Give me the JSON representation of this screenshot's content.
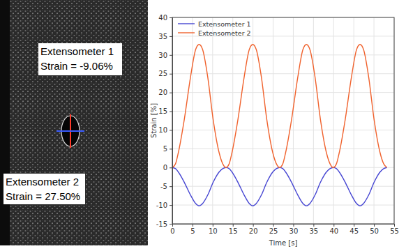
{
  "chart_data": {
    "type": "line",
    "x_label": "Time [s]",
    "y_label": "Strain [%]",
    "x": [
      0,
      0.8,
      1.5,
      3,
      4.5,
      5.8,
      6.65,
      7.5,
      8.8,
      10.1,
      11.6,
      12.5,
      13.3,
      14.1,
      14.8,
      16.3,
      17.8,
      19.1,
      19.95,
      20.8,
      22.1,
      23.4,
      24.9,
      25.8,
      26.6,
      27.4,
      28.1,
      29.6,
      31.1,
      32.4,
      33.25,
      34.1,
      35.4,
      36.7,
      38.2,
      39.1,
      39.9,
      40.7,
      41.4,
      42.9,
      44.4,
      45.7,
      46.55,
      47.4,
      48.7,
      50,
      51.5,
      52.4,
      53.2
    ],
    "series": [
      {
        "name": "Extensometer 1",
        "color": "#4646d2",
        "values": [
          0,
          -0.3,
          -1.2,
          -4,
          -7.3,
          -9.6,
          -10.2,
          -9.6,
          -7.3,
          -4,
          -1.2,
          -0.3,
          0,
          -0.3,
          -1.2,
          -4,
          -7.3,
          -9.6,
          -10.2,
          -9.6,
          -7.3,
          -4,
          -1.2,
          -0.3,
          0,
          -0.3,
          -1.2,
          -4,
          -7.3,
          -9.6,
          -10.2,
          -9.6,
          -7.3,
          -4,
          -1.2,
          -0.3,
          0,
          -0.3,
          -1.2,
          -4,
          -7.3,
          -9.6,
          -10.2,
          -9.6,
          -7.3,
          -4,
          -1.2,
          -0.3,
          0
        ]
      },
      {
        "name": "Extensometer 2",
        "color": "#f0622d",
        "values": [
          0,
          1,
          4,
          13,
          24,
          31.5,
          32.8,
          31.5,
          24,
          13,
          4,
          1,
          0,
          1,
          4,
          13,
          24,
          31.5,
          32.8,
          31.5,
          24,
          13,
          4,
          1,
          0,
          1,
          4,
          13,
          24,
          31.5,
          32.8,
          31.5,
          24,
          13,
          4,
          1,
          0,
          1,
          4,
          13,
          24,
          31.5,
          32.8,
          31.5,
          24,
          13,
          4,
          1,
          0
        ]
      }
    ],
    "xlim": [
      0,
      55
    ],
    "xticks": [
      0,
      5,
      10,
      15,
      20,
      25,
      30,
      35,
      40,
      45,
      50,
      55
    ],
    "ylim": [
      -15,
      40
    ],
    "yticks": [
      -15,
      -10,
      -5,
      0,
      5,
      10,
      15,
      20,
      25,
      30,
      35,
      40
    ],
    "grid": true,
    "legend": "upper left",
    "annotations": [
      {
        "label": "Extensometer 1",
        "text": "Strain = -9.06%"
      },
      {
        "label": "Extensometer 2",
        "text": "Strain = 27.50%"
      }
    ]
  }
}
